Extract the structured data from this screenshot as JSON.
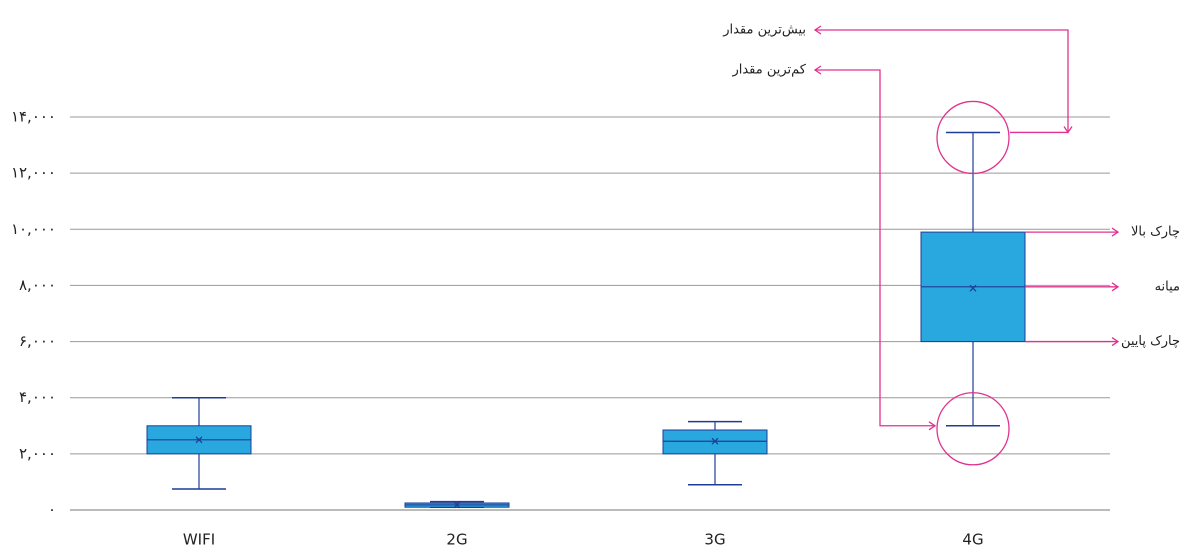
{
  "chart_data": {
    "type": "box",
    "categories": [
      "WIFI",
      "2G",
      "3G",
      "4G"
    ],
    "series": [
      {
        "color": "#29a8e0",
        "stroke": "#1f3c96",
        "min": [
          750,
          100,
          900,
          3000
        ],
        "q1": [
          2000,
          100,
          2000,
          6000
        ],
        "median": [
          2500,
          180,
          2450,
          7950
        ],
        "q3": [
          3000,
          250,
          2850,
          9900
        ],
        "max": [
          4000,
          300,
          3150,
          13450
        ],
        "mean": [
          2500,
          180,
          2450,
          7900
        ]
      }
    ],
    "ylim": [
      0,
      14000
    ],
    "yticks": [
      {
        "value": 0,
        "label": "۰"
      },
      {
        "value": 2000,
        "label": "۲,۰۰۰"
      },
      {
        "value": 4000,
        "label": "۴,۰۰۰"
      },
      {
        "value": 6000,
        "label": "۶,۰۰۰"
      },
      {
        "value": 8000,
        "label": "۸,۰۰۰"
      },
      {
        "value": 10000,
        "label": "۱۰,۰۰۰"
      },
      {
        "value": 12000,
        "label": "۱۲,۰۰۰"
      },
      {
        "value": 14000,
        "label": "۱۴,۰۰۰"
      }
    ],
    "grid": true,
    "annotation_color": "#e0338f",
    "annotations": {
      "max": "بیش‌ترین مقدار",
      "min": "کم‌ترین مقدار",
      "q3": "چارک بالا",
      "median": "میانه",
      "q1": "چارک پایین"
    }
  }
}
